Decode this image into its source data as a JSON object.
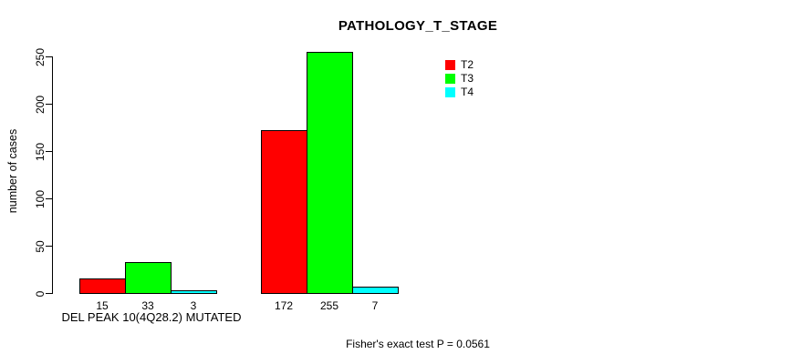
{
  "chart_data": {
    "type": "bar",
    "title": "PATHOLOGY_T_STAGE",
    "ylabel": "number of cases",
    "xlabel": "",
    "ylim": [
      0,
      250
    ],
    "yticks": [
      0,
      50,
      100,
      150,
      200,
      250
    ],
    "categories": [
      "DEL PEAK 10(4Q28.2) MUTATED",
      ""
    ],
    "series": [
      {
        "name": "T2",
        "color": "#ff0000",
        "values": [
          15,
          172
        ]
      },
      {
        "name": "T3",
        "color": "#00ff00",
        "values": [
          33,
          255
        ]
      },
      {
        "name": "T4",
        "color": "#00ffff",
        "values": [
          3,
          7
        ]
      }
    ],
    "bar_labels_shown": true,
    "legend_position": "top-right",
    "legend_entries": [
      "T2",
      "T3",
      "T4"
    ],
    "annotation": "Fisher's exact test P = 0.0561",
    "grid": false
  },
  "colors": {
    "background": "#ffffff",
    "axis": "#000000",
    "text": "#000000",
    "t2": "#ff0000",
    "t3": "#00ff00",
    "t4": "#00ffff"
  }
}
